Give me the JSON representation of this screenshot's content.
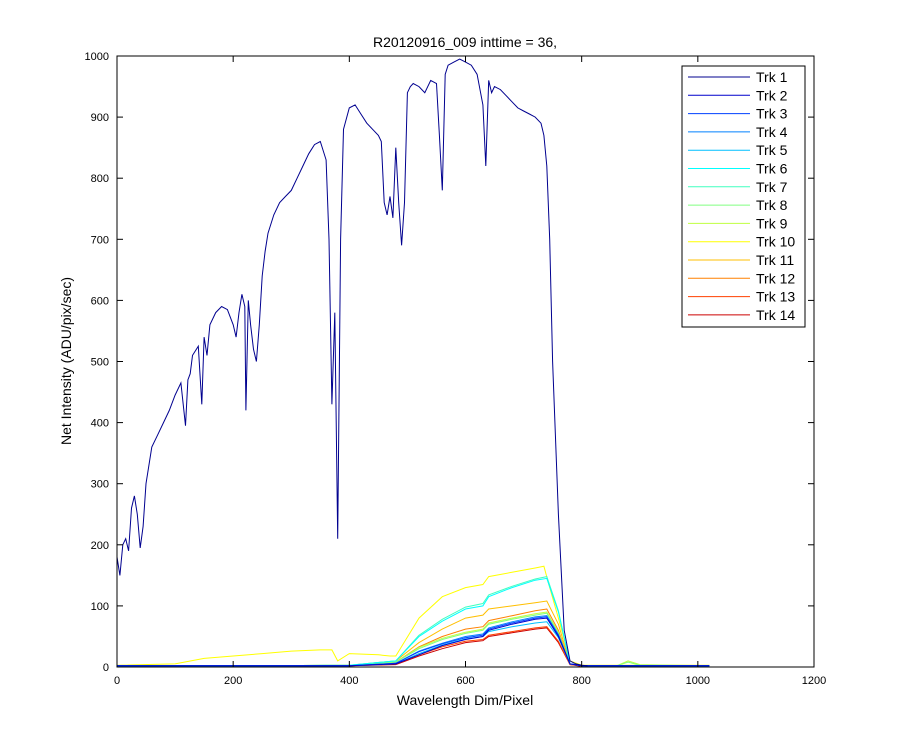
{
  "chart_data": {
    "type": "line",
    "title": "R20120916_009 inttime = 36,",
    "xlabel": "Wavelength Dim/Pixel",
    "ylabel": "Net Intensity (ADU/pix/sec)",
    "xlim": [
      0,
      1200
    ],
    "ylim": [
      0,
      1000
    ],
    "xticks": [
      0,
      200,
      400,
      600,
      800,
      1000,
      1200
    ],
    "yticks": [
      0,
      100,
      200,
      300,
      400,
      500,
      600,
      700,
      800,
      900,
      1000
    ],
    "grid": false,
    "legend_position": "top-right",
    "series": [
      {
        "name": "Trk 1",
        "color": "#00008F",
        "x": [
          0,
          5,
          10,
          15,
          20,
          25,
          30,
          35,
          40,
          45,
          50,
          60,
          70,
          80,
          90,
          100,
          110,
          118,
          122,
          126,
          130,
          140,
          146,
          150,
          155,
          160,
          170,
          180,
          190,
          200,
          205,
          210,
          215,
          220,
          222,
          226,
          230,
          235,
          240,
          245,
          250,
          255,
          260,
          270,
          280,
          290,
          300,
          310,
          320,
          330,
          340,
          350,
          360,
          365,
          370,
          375,
          380,
          385,
          390,
          400,
          410,
          420,
          430,
          440,
          450,
          455,
          460,
          465,
          470,
          475,
          480,
          485,
          490,
          495,
          500,
          505,
          510,
          520,
          530,
          540,
          550,
          555,
          560,
          565,
          570,
          580,
          590,
          600,
          610,
          620,
          630,
          635,
          640,
          645,
          650,
          660,
          670,
          680,
          690,
          700,
          710,
          720,
          730,
          735,
          740,
          745,
          750,
          760,
          770,
          780,
          790,
          800,
          810
        ],
        "y": [
          180,
          150,
          200,
          210,
          190,
          260,
          280,
          250,
          195,
          230,
          300,
          360,
          380,
          400,
          420,
          445,
          465,
          395,
          470,
          480,
          510,
          525,
          430,
          540,
          510,
          560,
          580,
          590,
          585,
          560,
          540,
          580,
          610,
          590,
          420,
          600,
          560,
          520,
          500,
          560,
          640,
          680,
          710,
          740,
          760,
          770,
          780,
          800,
          820,
          840,
          855,
          860,
          830,
          700,
          430,
          580,
          210,
          700,
          880,
          915,
          920,
          905,
          890,
          880,
          870,
          860,
          760,
          740,
          770,
          735,
          850,
          760,
          690,
          760,
          940,
          950,
          955,
          950,
          940,
          960,
          955,
          870,
          780,
          970,
          985,
          990,
          995,
          990,
          985,
          970,
          920,
          820,
          960,
          940,
          950,
          945,
          935,
          925,
          915,
          910,
          905,
          900,
          890,
          870,
          820,
          700,
          500,
          250,
          60,
          10,
          5,
          3,
          2
        ]
      },
      {
        "name": "Trk 2",
        "color": "#0000CC",
        "x": [
          0,
          200,
          400,
          480,
          520,
          560,
          600,
          630,
          640,
          680,
          720,
          740,
          760,
          780,
          800,
          1020
        ],
        "y": [
          2,
          2,
          2,
          5,
          20,
          35,
          45,
          50,
          60,
          70,
          78,
          80,
          50,
          5,
          2,
          2
        ]
      },
      {
        "name": "Trk 3",
        "color": "#0040FF",
        "x": [
          0,
          200,
          400,
          480,
          520,
          560,
          600,
          630,
          640,
          680,
          720,
          740,
          760,
          780,
          800,
          1020
        ],
        "y": [
          2,
          2,
          2,
          6,
          25,
          38,
          48,
          52,
          62,
          72,
          80,
          82,
          52,
          5,
          2,
          2
        ]
      },
      {
        "name": "Trk 4",
        "color": "#0080FF",
        "x": [
          0,
          200,
          400,
          480,
          520,
          560,
          600,
          630,
          640,
          680,
          720,
          740,
          760,
          780,
          800,
          1020
        ],
        "y": [
          2,
          2,
          2,
          6,
          26,
          39,
          50,
          54,
          64,
          74,
          82,
          84,
          53,
          5,
          2,
          2
        ]
      },
      {
        "name": "Trk 5",
        "color": "#00BFFF",
        "x": [
          0,
          200,
          400,
          480,
          520,
          560,
          600,
          630,
          640,
          680,
          720,
          740,
          760,
          780,
          800,
          1020
        ],
        "y": [
          2,
          2,
          2,
          5,
          22,
          36,
          46,
          50,
          58,
          66,
          72,
          74,
          48,
          5,
          2,
          2
        ]
      },
      {
        "name": "Trk 6",
        "color": "#00FFFF",
        "x": [
          0,
          200,
          400,
          480,
          520,
          560,
          600,
          630,
          640,
          680,
          720,
          740,
          760,
          780,
          800,
          1020
        ],
        "y": [
          2,
          2,
          3,
          10,
          50,
          75,
          95,
          100,
          115,
          130,
          142,
          145,
          90,
          5,
          2,
          2
        ]
      },
      {
        "name": "Trk 7",
        "color": "#40FFBF",
        "x": [
          0,
          200,
          400,
          480,
          520,
          560,
          600,
          630,
          640,
          680,
          720,
          740,
          760,
          780,
          800,
          1020
        ],
        "y": [
          2,
          2,
          3,
          10,
          52,
          78,
          98,
          104,
          118,
          132,
          144,
          148,
          92,
          5,
          2,
          2
        ]
      },
      {
        "name": "Trk 8",
        "color": "#80FF80",
        "x": [
          0,
          200,
          400,
          480,
          520,
          560,
          600,
          630,
          640,
          680,
          720,
          740,
          760,
          780,
          800,
          860,
          880,
          900,
          1020
        ],
        "y": [
          2,
          2,
          3,
          8,
          30,
          45,
          55,
          60,
          70,
          78,
          85,
          88,
          55,
          5,
          2,
          2,
          8,
          3,
          2
        ]
      },
      {
        "name": "Trk 9",
        "color": "#BFFF40",
        "x": [
          0,
          200,
          400,
          480,
          520,
          560,
          600,
          630,
          640,
          680,
          720,
          740,
          760,
          780,
          800,
          860,
          880,
          900,
          1020
        ],
        "y": [
          2,
          2,
          3,
          8,
          32,
          47,
          57,
          62,
          72,
          80,
          87,
          90,
          57,
          5,
          2,
          2,
          10,
          4,
          2
        ]
      },
      {
        "name": "Trk 10",
        "color": "#FFFF00",
        "x": [
          0,
          100,
          150,
          200,
          250,
          300,
          350,
          370,
          380,
          400,
          450,
          470,
          480,
          520,
          560,
          600,
          630,
          640,
          680,
          720,
          735,
          745,
          760,
          780,
          800,
          1020
        ],
        "y": [
          3,
          5,
          14,
          18,
          22,
          26,
          28,
          28,
          10,
          22,
          20,
          18,
          18,
          80,
          115,
          130,
          135,
          148,
          155,
          162,
          165,
          130,
          80,
          10,
          3,
          3
        ]
      },
      {
        "name": "Trk 11",
        "color": "#FFBF00",
        "x": [
          0,
          200,
          400,
          480,
          520,
          560,
          600,
          630,
          640,
          680,
          720,
          740,
          760,
          780,
          800,
          1020
        ],
        "y": [
          2,
          2,
          3,
          10,
          40,
          62,
          80,
          85,
          95,
          100,
          105,
          108,
          70,
          5,
          2,
          2
        ]
      },
      {
        "name": "Trk 12",
        "color": "#FF8000",
        "x": [
          0,
          200,
          400,
          480,
          520,
          560,
          600,
          630,
          640,
          680,
          720,
          740,
          760,
          780,
          800,
          1020
        ],
        "y": [
          2,
          2,
          3,
          8,
          33,
          50,
          62,
          66,
          76,
          84,
          92,
          95,
          60,
          5,
          2,
          2
        ]
      },
      {
        "name": "Trk 13",
        "color": "#FF4000",
        "x": [
          0,
          200,
          400,
          480,
          520,
          560,
          600,
          630,
          640,
          680,
          720,
          740,
          760,
          780,
          800,
          1020
        ],
        "y": [
          2,
          2,
          2,
          5,
          20,
          33,
          42,
          45,
          52,
          58,
          64,
          66,
          42,
          4,
          2,
          2
        ]
      },
      {
        "name": "Trk 14",
        "color": "#CC0000",
        "x": [
          0,
          200,
          400,
          480,
          520,
          560,
          600,
          630,
          640,
          680,
          720,
          740,
          760,
          780,
          800,
          1020
        ],
        "y": [
          1,
          1,
          2,
          4,
          18,
          30,
          40,
          43,
          50,
          56,
          62,
          64,
          40,
          4,
          1,
          1
        ]
      }
    ]
  }
}
